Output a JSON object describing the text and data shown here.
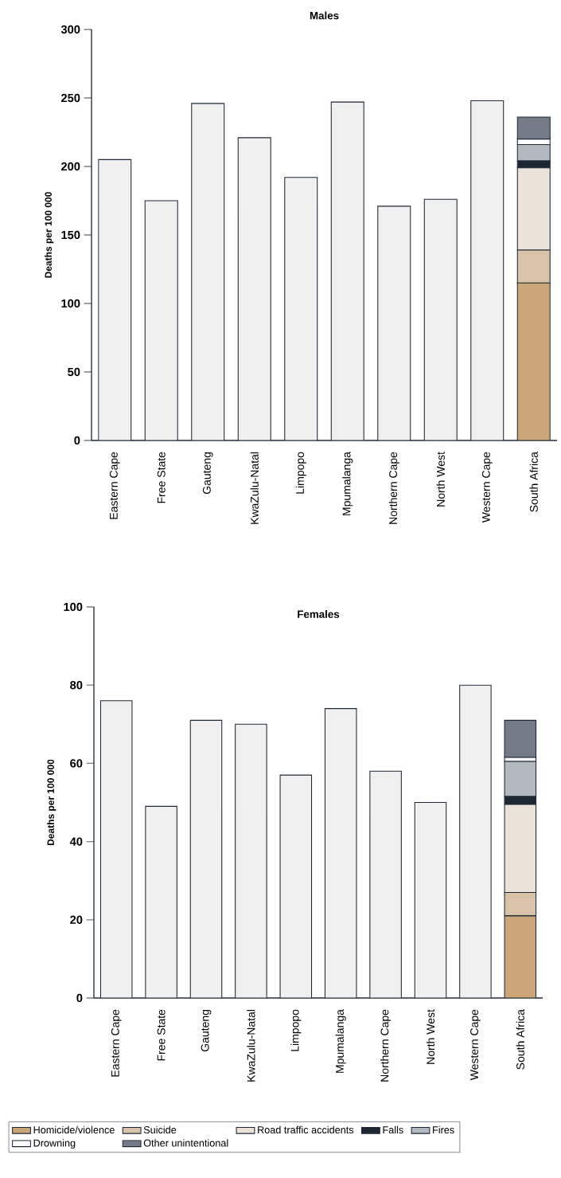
{
  "chart_data": [
    {
      "type": "bar",
      "stacked": true,
      "title": "Males",
      "ylabel": "Deaths per 100 000",
      "categories": [
        "Eastern Cape",
        "Free  State",
        "Gauteng",
        "KwaZulu-Natal",
        "Limpopo",
        "Mpumalanga",
        "Northern Cape",
        "North West",
        "Western Cape",
        "South Africa"
      ],
      "ylim": [
        0,
        300
      ],
      "yticks": [
        0,
        50,
        100,
        150,
        200,
        250,
        300
      ],
      "legend": false,
      "series": [
        {
          "color": "#eff0ef",
          "values": [
            205,
            175,
            246,
            221,
            192,
            247,
            171,
            176,
            248,
            null
          ]
        },
        {
          "color": "#cba676",
          "values": [
            null,
            null,
            null,
            null,
            null,
            null,
            null,
            null,
            null,
            115
          ]
        },
        {
          "color": "#d9c3a8",
          "values": [
            null,
            null,
            null,
            null,
            null,
            null,
            null,
            null,
            null,
            24
          ]
        },
        {
          "color": "#ebe3da",
          "values": [
            null,
            null,
            null,
            null,
            null,
            null,
            null,
            null,
            null,
            60
          ]
        },
        {
          "color": "#1c2733",
          "values": [
            null,
            null,
            null,
            null,
            null,
            null,
            null,
            null,
            null,
            5
          ]
        },
        {
          "color": "#b3b9c0",
          "values": [
            null,
            null,
            null,
            null,
            null,
            null,
            null,
            null,
            null,
            12
          ]
        },
        {
          "color": "#ffffff",
          "values": [
            null,
            null,
            null,
            null,
            null,
            null,
            null,
            null,
            null,
            4
          ]
        },
        {
          "color": "#737b84",
          "values": [
            null,
            null,
            null,
            null,
            null,
            null,
            null,
            null,
            null,
            16
          ]
        }
      ]
    },
    {
      "type": "bar",
      "stacked": true,
      "title": "Females",
      "ylabel": "Deaths per 100 000",
      "categories": [
        "Eastern Cape",
        "Free  State",
        "Gauteng",
        "KwaZulu-Natal",
        "Limpopo",
        "Mpumalanga",
        "Northern Cape",
        "North West",
        "Western Cape",
        "South Africa"
      ],
      "ylim": [
        0,
        100
      ],
      "yticks": [
        0,
        20,
        40,
        60,
        80,
        100
      ],
      "legend": "bottom",
      "series": [
        {
          "color": "#eff0ef",
          "values": [
            76,
            49,
            71,
            70,
            57,
            74,
            58,
            50,
            80,
            null
          ]
        },
        {
          "name": "Homicide/violence",
          "color": "#cba676",
          "values": [
            null,
            null,
            null,
            null,
            null,
            null,
            null,
            null,
            null,
            21
          ]
        },
        {
          "name": "Suicide",
          "color": "#d9c3a8",
          "values": [
            null,
            null,
            null,
            null,
            null,
            null,
            null,
            null,
            null,
            6
          ]
        },
        {
          "name": "Road traffic accidents",
          "color": "#ebe3da",
          "values": [
            null,
            null,
            null,
            null,
            null,
            null,
            null,
            null,
            null,
            22.5
          ]
        },
        {
          "name": "Falls",
          "color": "#1c2733",
          "values": [
            null,
            null,
            null,
            null,
            null,
            null,
            null,
            null,
            null,
            2
          ]
        },
        {
          "name": "Fires",
          "color": "#b3b9c0",
          "values": [
            null,
            null,
            null,
            null,
            null,
            null,
            null,
            null,
            null,
            9
          ]
        },
        {
          "name": "Drowning",
          "color": "#ffffff",
          "values": [
            null,
            null,
            null,
            null,
            null,
            null,
            null,
            null,
            null,
            1
          ]
        },
        {
          "name": "Other unintentional",
          "color": "#737b84",
          "values": [
            null,
            null,
            null,
            null,
            null,
            null,
            null,
            null,
            null,
            9.5
          ]
        }
      ]
    }
  ]
}
